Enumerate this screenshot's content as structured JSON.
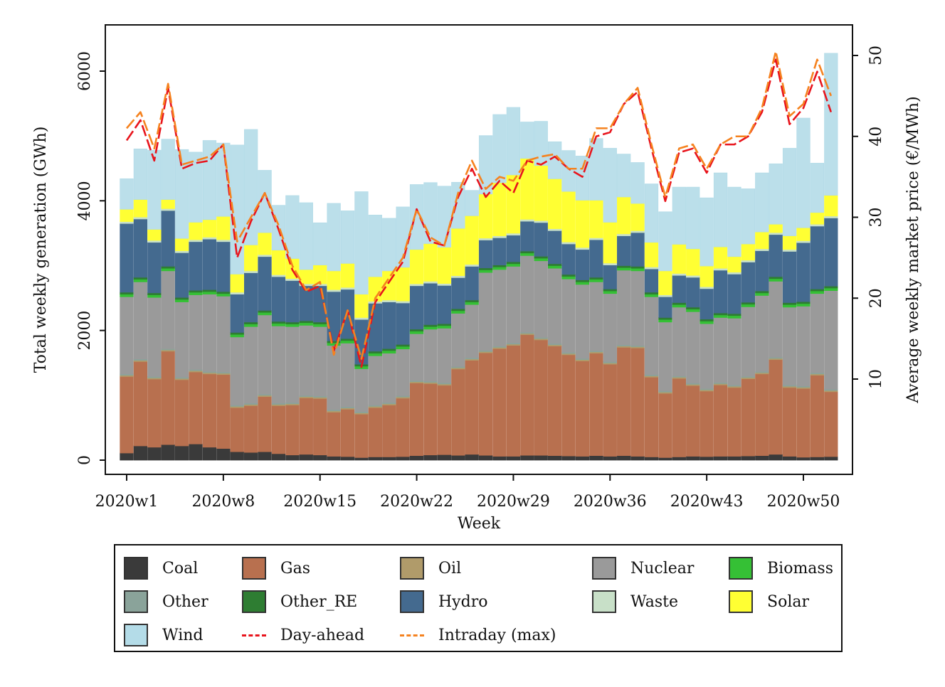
{
  "chart_data": {
    "type": "bar",
    "stacked": true,
    "xlabel": "Week",
    "ylabel": "Total weekly generation (GWh)",
    "y2label": "Average weekly market price (€/MWh)",
    "ylim": [
      0,
      6400
    ],
    "y2lim": [
      0,
      52
    ],
    "yticks": [
      0,
      2000,
      4000,
      6000
    ],
    "y2ticks": [
      10,
      20,
      30,
      40,
      50
    ],
    "xtick_labels": [
      "2020w1",
      "2020w8",
      "2020w15",
      "2020w22",
      "2020w29",
      "2020w36",
      "2020w43",
      "2020w50"
    ],
    "xtick_weeks": [
      1,
      8,
      15,
      22,
      29,
      36,
      43,
      50
    ],
    "weeks": [
      1,
      2,
      3,
      4,
      5,
      6,
      7,
      8,
      9,
      10,
      11,
      12,
      13,
      14,
      15,
      16,
      17,
      18,
      19,
      20,
      21,
      22,
      23,
      24,
      25,
      26,
      27,
      28,
      29,
      30,
      31,
      32,
      33,
      34,
      35,
      36,
      37,
      38,
      39,
      40,
      41,
      42,
      43,
      44,
      45,
      46,
      47,
      48,
      49,
      50,
      51,
      52
    ],
    "colors": {
      "Coal": "#3a3a3a",
      "Gas": "#b8704f",
      "Oil": "#b09b6a",
      "Nuclear": "#9a9a9a",
      "Biomass": "#35c035",
      "Other": "#8aa39a",
      "Other_RE": "#2e7d32",
      "Hydro": "#446a8f",
      "Waste": "#c8e0c8",
      "Solar": "#ffff33",
      "Wind": "#b4dce8",
      "Day-ahead": "#e8141c",
      "Intraday (max)": "#f5821f"
    },
    "series": [
      {
        "name": "Coal",
        "values": [
          110,
          220,
          200,
          240,
          220,
          250,
          200,
          180,
          130,
          120,
          130,
          100,
          80,
          90,
          80,
          60,
          55,
          40,
          50,
          50,
          55,
          70,
          80,
          85,
          75,
          90,
          75,
          60,
          60,
          75,
          75,
          70,
          65,
          60,
          70,
          60,
          70,
          60,
          50,
          40,
          50,
          60,
          55,
          60,
          60,
          65,
          70,
          90,
          60,
          45,
          50,
          55
        ]
      },
      {
        "name": "Gas",
        "values": [
          1180,
          1300,
          1050,
          1440,
          1020,
          1110,
          1130,
          1140,
          680,
          720,
          850,
          740,
          770,
          870,
          870,
          680,
          730,
          670,
          760,
          800,
          900,
          1120,
          1100,
          1070,
          1330,
          1450,
          1580,
          1660,
          1710,
          1860,
          1780,
          1690,
          1560,
          1470,
          1580,
          1420,
          1670,
          1670,
          1230,
          990,
          1210,
          1090,
          1010,
          1100,
          1060,
          1190,
          1260,
          1460,
          1060,
          1060,
          1260,
          1000
        ]
      },
      {
        "name": "Oil",
        "values": [
          20,
          20,
          20,
          20,
          20,
          20,
          20,
          20,
          20,
          20,
          20,
          20,
          20,
          20,
          20,
          20,
          20,
          20,
          20,
          20,
          20,
          20,
          20,
          20,
          20,
          20,
          20,
          20,
          20,
          20,
          20,
          20,
          20,
          20,
          20,
          20,
          20,
          20,
          20,
          20,
          20,
          20,
          20,
          20,
          20,
          20,
          20,
          20,
          20,
          20,
          20,
          20
        ]
      },
      {
        "name": "Other",
        "values": [
          20,
          20,
          20,
          20,
          20,
          20,
          20,
          20,
          20,
          20,
          20,
          20,
          20,
          20,
          20,
          20,
          20,
          20,
          20,
          20,
          20,
          20,
          20,
          20,
          20,
          20,
          20,
          20,
          20,
          20,
          20,
          20,
          20,
          20,
          20,
          20,
          20,
          20,
          20,
          20,
          20,
          20,
          20,
          20,
          20,
          20,
          20,
          20,
          20,
          20,
          20,
          20
        ]
      },
      {
        "name": "Nuclear",
        "values": [
          1190,
          1190,
          1220,
          1200,
          1160,
          1150,
          1190,
          1170,
          1050,
          1180,
          1220,
          1190,
          1170,
          1080,
          1070,
          990,
          980,
          660,
          760,
          760,
          720,
          720,
          800,
          840,
          820,
          820,
          1200,
          1180,
          1180,
          1180,
          1180,
          1160,
          1130,
          1140,
          1060,
          1050,
          1150,
          1150,
          1200,
          1060,
          1060,
          1100,
          1000,
          1000,
          1030,
          1070,
          1170,
          1170,
          1200,
          1230,
          1220,
          1520
        ]
      },
      {
        "name": "Biomass",
        "values": [
          40,
          40,
          40,
          40,
          40,
          40,
          40,
          40,
          40,
          40,
          40,
          40,
          40,
          40,
          40,
          40,
          40,
          40,
          40,
          40,
          40,
          40,
          40,
          40,
          40,
          40,
          40,
          40,
          40,
          40,
          40,
          40,
          40,
          40,
          40,
          40,
          40,
          40,
          40,
          40,
          40,
          40,
          40,
          40,
          40,
          40,
          40,
          40,
          40,
          40,
          40,
          40
        ]
      },
      {
        "name": "Other_RE",
        "values": [
          30,
          30,
          30,
          30,
          30,
          30,
          30,
          30,
          30,
          30,
          30,
          30,
          30,
          30,
          30,
          30,
          30,
          30,
          30,
          30,
          30,
          30,
          30,
          30,
          30,
          30,
          30,
          30,
          30,
          30,
          30,
          30,
          30,
          30,
          30,
          30,
          30,
          30,
          30,
          30,
          30,
          30,
          30,
          30,
          30,
          30,
          30,
          30,
          30,
          30,
          30,
          30
        ]
      },
      {
        "name": "Hydro",
        "values": [
          1060,
          900,
          780,
          860,
          690,
          750,
          780,
          770,
          590,
          760,
          830,
          690,
          640,
          540,
          560,
          760,
          760,
          690,
          740,
          720,
          640,
          670,
          640,
          590,
          480,
          520,
          430,
          420,
          410,
          460,
          520,
          510,
          470,
          470,
          580,
          370,
          460,
          520,
          360,
          320,
          420,
          460,
          470,
          660,
          610,
          620,
          620,
          650,
          790,
          910,
          970,
          1050
        ]
      },
      {
        "name": "Waste",
        "values": [
          30,
          30,
          30,
          30,
          30,
          30,
          30,
          30,
          30,
          30,
          30,
          30,
          30,
          30,
          30,
          30,
          30,
          30,
          30,
          30,
          30,
          30,
          30,
          30,
          30,
          30,
          30,
          30,
          30,
          30,
          30,
          30,
          30,
          30,
          30,
          30,
          30,
          30,
          30,
          30,
          30,
          30,
          30,
          30,
          30,
          30,
          30,
          30,
          30,
          30,
          30,
          30
        ]
      },
      {
        "name": "Solar",
        "values": [
          190,
          270,
          170,
          140,
          190,
          270,
          270,
          360,
          280,
          400,
          340,
          380,
          310,
          220,
          290,
          290,
          370,
          360,
          380,
          450,
          520,
          530,
          580,
          560,
          730,
          750,
          680,
          820,
          900,
          940,
          850,
          770,
          780,
          730,
          580,
          630,
          570,
          420,
          380,
          370,
          450,
          410,
          320,
          330,
          240,
          250,
          260,
          130,
          210,
          200,
          180,
          320
        ]
      },
      {
        "name": "Wind",
        "values": [
          470,
          780,
          1220,
          930,
          1370,
          1080,
          1220,
          1130,
          1990,
          1780,
          960,
          690,
          970,
          1030,
          650,
          1040,
          810,
          1580,
          950,
          810,
          930,
          1000,
          940,
          940,
          710,
          390,
          900,
          1050,
          1040,
          560,
          680,
          570,
          630,
          680,
          950,
          1140,
          660,
          630,
          900,
          910,
          880,
          950,
          1050,
          1140,
          1070,
          850,
          910,
          930,
          1350,
          1690,
          760,
          2190
        ]
      }
    ],
    "lines": [
      {
        "name": "Day-ahead",
        "axis": "right",
        "values": [
          39.5,
          42.0,
          37.0,
          46.0,
          36.0,
          36.7,
          37.0,
          39.0,
          25.0,
          29.5,
          33.0,
          28.5,
          23.5,
          20.8,
          21.5,
          13.5,
          18.5,
          11.5,
          19.5,
          22.0,
          24.5,
          31.0,
          27.0,
          26.5,
          32.5,
          36.0,
          32.5,
          34.5,
          33.0,
          37.0,
          36.5,
          37.5,
          36.0,
          35.0,
          40.0,
          40.5,
          44.0,
          45.5,
          38.5,
          32.0,
          38.0,
          38.5,
          35.5,
          39.0,
          39.0,
          40.0,
          43.0,
          49.5,
          41.5,
          43.5,
          48.0,
          43.0
        ]
      },
      {
        "name": "Intraday (max)",
        "axis": "right",
        "values": [
          41.0,
          43.0,
          38.5,
          46.5,
          36.5,
          37.0,
          37.5,
          39.0,
          27.0,
          30.0,
          33.0,
          29.0,
          24.0,
          21.0,
          22.0,
          13.0,
          18.5,
          12.5,
          20.0,
          22.5,
          25.0,
          31.0,
          27.5,
          26.5,
          33.0,
          37.0,
          33.5,
          35.0,
          34.5,
          37.0,
          37.5,
          37.8,
          36.0,
          36.0,
          41.0,
          41.0,
          44.0,
          46.0,
          39.0,
          32.5,
          38.5,
          39.0,
          36.0,
          39.0,
          40.0,
          40.0,
          43.5,
          50.5,
          42.5,
          44.0,
          49.5,
          45.0
        ]
      }
    ],
    "legend": {
      "position": "bottom",
      "items": [
        "Coal",
        "Gas",
        "Oil",
        "Nuclear",
        "Biomass",
        "Other",
        "Other_RE",
        "Hydro",
        "Waste",
        "Solar",
        "Wind",
        "Day-ahead",
        "Intraday (max)"
      ]
    }
  }
}
